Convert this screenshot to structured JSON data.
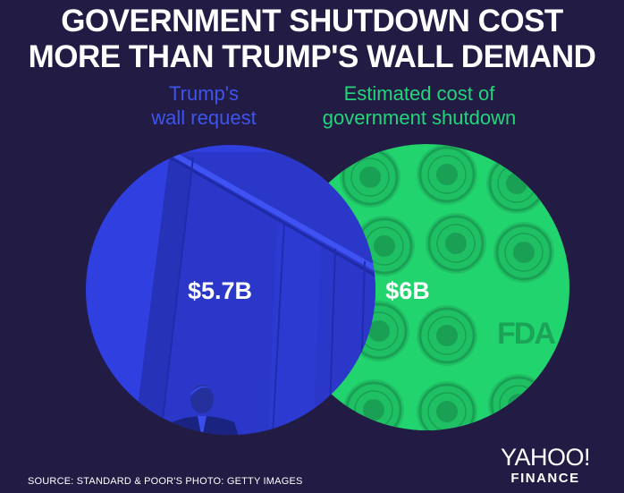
{
  "headline": {
    "line1": "GOVERNMENT SHUTDOWN COST",
    "line2": "MORE THAN TRUMP'S WALL DEMAND"
  },
  "colors": {
    "background": "#221c45",
    "wall": "#2f3fe0",
    "shutdown": "#22d46e",
    "wall_label": "#3d54ee",
    "shutdown_label": "#24d47a"
  },
  "chart_data": {
    "type": "venn",
    "unit": "USD billions",
    "series": [
      {
        "label_lines": [
          "Trump's",
          "wall request"
        ],
        "value": 5.7,
        "value_label": "$5.7B"
      },
      {
        "label_lines": [
          "Estimated cost of",
          "government shutdown"
        ],
        "value": 6.0,
        "value_label": "$6B"
      }
    ],
    "decor": {
      "wall_circle": [
        "wall",
        "trump-silhouette"
      ],
      "shutdown_circle": [
        "agency-seal",
        "fda-logo"
      ]
    }
  },
  "footer": {
    "source": "SOURCE: STANDARD & POOR'S   PHOTO: GETTY IMAGES",
    "logo_main": "YAHOO!",
    "logo_sub": "FINANCE"
  }
}
